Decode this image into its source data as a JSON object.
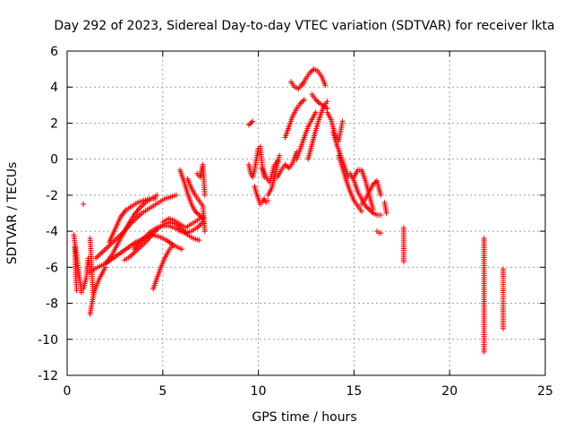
{
  "chart_data": {
    "type": "scatter",
    "title": "Day 292 of 2023, Sidereal Day-to-day VTEC variation (SDTVAR) for receiver lkta",
    "xlabel": "GPS time / hours",
    "ylabel": "SDTVAR / TECUs",
    "xlim": [
      0,
      25
    ],
    "ylim": [
      -12,
      6
    ],
    "x_ticks": [
      0,
      5,
      10,
      15,
      20,
      25
    ],
    "y_ticks": [
      -12,
      -10,
      -8,
      -6,
      -4,
      -2,
      0,
      2,
      4,
      6
    ],
    "grid": true,
    "marker": "+",
    "series_color": "#ff0000",
    "series": [
      {
        "name": "SDTVAR",
        "segments": [
          {
            "x": [
              0.35,
              0.55,
              0.75
            ],
            "y": [
              -4.2,
              -5.8,
              -7.4
            ]
          },
          {
            "x": [
              0.4,
              0.45,
              0.5
            ],
            "y": [
              -4.9,
              -6.4,
              -7.3
            ]
          },
          {
            "x": [
              0.85
            ],
            "y": [
              -2.5
            ]
          },
          {
            "x": [
              0.85,
              1.0,
              1.1,
              1.2
            ],
            "y": [
              -7.2,
              -6.6,
              -5.5,
              -6.3
            ]
          },
          {
            "x": [
              1.2,
              1.25,
              1.3,
              1.35
            ],
            "y": [
              -4.4,
              -5.3,
              -6.4,
              -7.4
            ]
          },
          {
            "x": [
              1.2,
              1.3,
              1.4,
              1.55,
              1.7,
              1.85,
              2.0
            ],
            "y": [
              -8.6,
              -8.0,
              -7.4,
              -7.0,
              -6.6,
              -6.3,
              -6.0
            ]
          },
          {
            "x": [
              1.3,
              1.6,
              2.0,
              2.4,
              2.8,
              3.2,
              3.6,
              4.0,
              4.4,
              4.8,
              5.2,
              5.6,
              6.0
            ],
            "y": [
              -6.2,
              -6.0,
              -5.8,
              -5.5,
              -5.2,
              -4.9,
              -4.6,
              -4.4,
              -4.2,
              -4.3,
              -4.5,
              -4.8,
              -5.0
            ]
          },
          {
            "x": [
              1.5,
              1.8,
              2.1,
              2.4,
              2.7,
              3.0,
              3.3,
              3.6,
              3.9,
              4.2,
              4.5,
              4.8,
              5.1,
              5.4,
              5.7
            ],
            "y": [
              -5.5,
              -5.2,
              -4.9,
              -4.6,
              -4.3,
              -4.0,
              -3.6,
              -3.3,
              -3.0,
              -2.8,
              -2.6,
              -2.4,
              -2.2,
              -2.1,
              -2.0
            ]
          },
          {
            "x": [
              2.0,
              2.3,
              2.6,
              2.9,
              3.2,
              3.5,
              3.8,
              4.1,
              4.4,
              4.7
            ],
            "y": [
              -5.8,
              -5.4,
              -4.8,
              -4.2,
              -3.6,
              -3.1,
              -2.7,
              -2.4,
              -2.2,
              -2.0
            ]
          },
          {
            "x": [
              2.2,
              2.5,
              2.8,
              3.1,
              3.4,
              3.7,
              4.0,
              4.3,
              4.6
            ],
            "y": [
              -4.6,
              -3.9,
              -3.2,
              -2.8,
              -2.6,
              -2.4,
              -2.3,
              -2.2,
              -2.2
            ]
          },
          {
            "x": [
              3.0,
              3.3,
              3.6,
              3.9,
              4.2,
              4.5,
              4.8,
              5.1,
              5.4,
              5.7,
              6.0,
              6.3,
              6.6,
              6.9
            ],
            "y": [
              -5.6,
              -5.4,
              -5.1,
              -4.8,
              -4.5,
              -4.1,
              -3.8,
              -3.6,
              -3.5,
              -3.6,
              -3.9,
              -4.2,
              -4.4,
              -4.5
            ]
          },
          {
            "x": [
              3.5,
              3.8,
              4.1,
              4.4,
              4.7,
              5.0,
              5.3,
              5.6,
              5.9,
              6.2,
              6.5,
              6.8,
              7.1
            ],
            "y": [
              -5.0,
              -4.6,
              -4.3,
              -4.0,
              -3.8,
              -3.7,
              -3.7,
              -3.8,
              -4.0,
              -4.1,
              -4.0,
              -3.8,
              -3.5
            ]
          },
          {
            "x": [
              4.5,
              4.7,
              4.9,
              5.1,
              5.3,
              5.5
            ],
            "y": [
              -7.2,
              -6.6,
              -6.0,
              -5.5,
              -5.1,
              -4.8
            ]
          },
          {
            "x": [
              5.0,
              5.3,
              5.6,
              5.9,
              6.2,
              6.5,
              6.8,
              7.1
            ],
            "y": [
              -3.5,
              -3.3,
              -3.4,
              -3.6,
              -3.8,
              -3.6,
              -3.4,
              -3.2
            ]
          },
          {
            "x": [
              5.9,
              6.1,
              6.3,
              6.5,
              6.7,
              6.9,
              7.1
            ],
            "y": [
              -0.6,
              -1.2,
              -1.9,
              -2.5,
              -2.9,
              -3.1,
              -3.3
            ]
          },
          {
            "x": [
              6.3,
              6.5,
              6.7,
              6.9,
              7.1,
              7.2
            ],
            "y": [
              -1.1,
              -1.6,
              -2.0,
              -2.3,
              -2.6,
              -4.0
            ]
          },
          {
            "x": [
              6.8,
              6.95,
              7.1,
              7.2
            ],
            "y": [
              -0.8,
              -1.0,
              -0.3,
              -2.0
            ]
          },
          {
            "x": [
              9.5,
              9.7
            ],
            "y": [
              1.9,
              2.1
            ]
          },
          {
            "x": [
              9.5,
              9.6,
              9.7,
              9.8,
              9.9,
              10.0,
              10.1,
              10.2,
              10.3
            ],
            "y": [
              -0.3,
              -0.8,
              -1.0,
              -0.6,
              0.0,
              0.6,
              0.7,
              -0.3,
              -1.0
            ]
          },
          {
            "x": [
              9.8,
              9.9,
              10.0,
              10.1,
              10.2,
              10.3,
              10.4,
              10.5
            ],
            "y": [
              -1.5,
              -1.9,
              -2.2,
              -2.5,
              -2.4,
              -2.2,
              -2.4,
              -2.3
            ]
          },
          {
            "x": [
              10.2,
              10.4,
              10.6,
              10.8,
              11.0
            ],
            "y": [
              -0.5,
              -1.0,
              -1.3,
              -0.4,
              -0.1
            ]
          },
          {
            "x": [
              10.5,
              10.7,
              10.9,
              11.1
            ],
            "y": [
              -2.0,
              -1.6,
              -0.8,
              0.2
            ]
          },
          {
            "x": [
              11.0,
              11.2,
              11.4,
              11.6,
              11.8,
              12.0
            ],
            "y": [
              -1.0,
              -0.6,
              -0.3,
              -0.5,
              -0.2,
              0.4
            ]
          },
          {
            "x": [
              11.4,
              11.6,
              11.8,
              12.0,
              12.2,
              12.4
            ],
            "y": [
              1.2,
              1.8,
              2.4,
              2.8,
              3.1,
              3.3
            ]
          },
          {
            "x": [
              11.7,
              11.9,
              12.1,
              12.3
            ],
            "y": [
              4.3,
              4.0,
              3.9,
              4.2
            ]
          },
          {
            "x": [
              12.0,
              12.2,
              12.4,
              12.6,
              12.8,
              13.0
            ],
            "y": [
              0.0,
              0.6,
              1.2,
              1.8,
              2.2,
              2.6
            ]
          },
          {
            "x": [
              12.3,
              12.5,
              12.7,
              12.9,
              13.1,
              13.3,
              13.5
            ],
            "y": [
              4.1,
              4.5,
              4.8,
              5.0,
              4.9,
              4.6,
              4.1
            ]
          },
          {
            "x": [
              12.6,
              12.8,
              13.0,
              13.2,
              13.4,
              13.6
            ],
            "y": [
              0.0,
              0.8,
              1.6,
              2.3,
              2.9,
              3.2
            ]
          },
          {
            "x": [
              12.8,
              13.0,
              13.2,
              13.4,
              13.6
            ],
            "y": [
              3.6,
              3.3,
              3.1,
              3.0,
              2.8
            ]
          },
          {
            "x": [
              13.6,
              13.8,
              14.0,
              14.2,
              14.4
            ],
            "y": [
              2.6,
              2.2,
              1.4,
              1.0,
              2.1
            ]
          },
          {
            "x": [
              13.9,
              14.1,
              14.3,
              14.5,
              14.7
            ],
            "y": [
              1.5,
              0.8,
              0.2,
              -0.4,
              -1.0
            ]
          },
          {
            "x": [
              14.2,
              14.4,
              14.6,
              14.8,
              15.0,
              15.2,
              15.4
            ],
            "y": [
              0.2,
              -0.5,
              -1.2,
              -1.8,
              -2.3,
              -2.6,
              -2.9
            ]
          },
          {
            "x": [
              14.8,
              15.0,
              15.2,
              15.4,
              15.6,
              15.8,
              16.0,
              16.2,
              16.4
            ],
            "y": [
              -0.8,
              -1.2,
              -1.8,
              -2.2,
              -2.6,
              -2.8,
              -3.0,
              -3.1,
              -3.1
            ]
          },
          {
            "x": [
              15.0,
              15.2,
              15.4,
              15.6,
              15.8,
              16.0
            ],
            "y": [
              -1.0,
              -0.6,
              -0.6,
              -1.2,
              -2.0,
              -2.8
            ]
          },
          {
            "x": [
              15.4,
              15.6,
              15.8,
              16.0,
              16.2,
              16.4
            ],
            "y": [
              -2.5,
              -2.2,
              -1.8,
              -1.4,
              -1.2,
              -2.0
            ]
          },
          {
            "x": [
              16.2,
              16.3,
              16.4
            ],
            "y": [
              -4.0,
              -4.1,
              -4.1
            ]
          },
          {
            "x": [
              16.6,
              16.7
            ],
            "y": [
              -2.4,
              -3.0
            ]
          },
          {
            "x": [
              17.6,
              17.6,
              17.6,
              17.6
            ],
            "y": [
              -3.8,
              -4.0,
              -5.5,
              -5.7
            ]
          },
          {
            "x": [
              21.8,
              21.8,
              21.8,
              21.8,
              21.8,
              21.8
            ],
            "y": [
              -4.4,
              -4.8,
              -7.9,
              -8.1,
              -10.5,
              -10.7
            ]
          },
          {
            "x": [
              22.8,
              22.8,
              22.8,
              22.8,
              22.8,
              22.8,
              22.8
            ],
            "y": [
              -6.1,
              -6.6,
              -7.2,
              -7.4,
              -8.0,
              -9.1,
              -9.4
            ]
          }
        ]
      }
    ]
  }
}
